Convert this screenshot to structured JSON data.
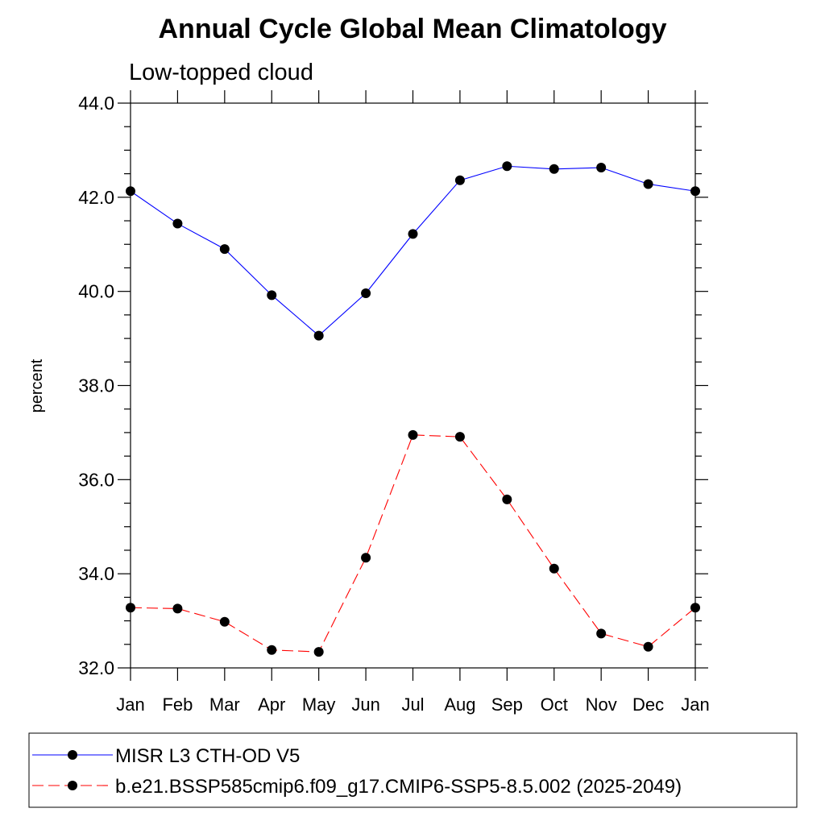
{
  "chart_data": {
    "type": "line",
    "title": "Annual Cycle Global Mean Climatology",
    "subtitle": "Low-topped cloud",
    "xlabel": "",
    "ylabel": "percent",
    "ylim": [
      32.0,
      44.0
    ],
    "yticks": [
      "32.0",
      "34.0",
      "36.0",
      "38.0",
      "40.0",
      "42.0",
      "44.0"
    ],
    "categories": [
      "Jan",
      "Feb",
      "Mar",
      "Apr",
      "May",
      "Jun",
      "Jul",
      "Aug",
      "Sep",
      "Oct",
      "Nov",
      "Dec",
      "Jan"
    ],
    "grid": false,
    "legend_position": "bottom",
    "series": [
      {
        "name": "MISR L3 CTH-OD V5",
        "color": "#0000ff",
        "dashed": false,
        "values": [
          42.13,
          41.44,
          40.9,
          39.92,
          39.06,
          39.96,
          41.22,
          42.36,
          42.66,
          42.6,
          42.63,
          42.28,
          42.13
        ]
      },
      {
        "name": "b.e21.BSSP585cmip6.f09_g17.CMIP6-SSP5-8.5.002 (2025-2049)",
        "color": "#ff0000",
        "dashed": true,
        "values": [
          33.28,
          33.26,
          32.98,
          32.38,
          32.34,
          34.34,
          36.95,
          36.91,
          35.58,
          34.11,
          32.73,
          32.45,
          33.28
        ]
      }
    ]
  }
}
